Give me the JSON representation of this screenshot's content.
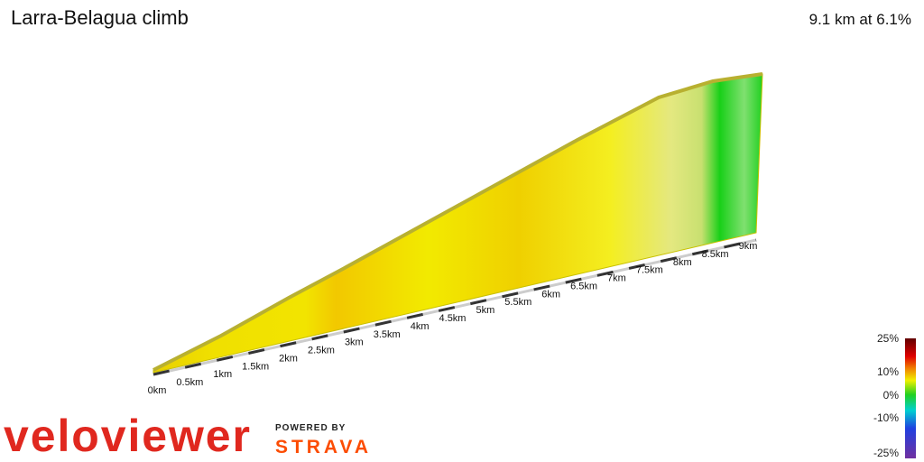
{
  "header": {
    "title": "Larra-Belagua climb",
    "summary": "9.1 km at 6.1%"
  },
  "distance_labels": [
    "0km",
    "0.5km",
    "1km",
    "1.5km",
    "2km",
    "2.5km",
    "3km",
    "3.5km",
    "4km",
    "4.5km",
    "5km",
    "5.5km",
    "6km",
    "6.5km",
    "7km",
    "7.5km",
    "8km",
    "8.5km",
    "9km"
  ],
  "gradient_legend": [
    "25%",
    "10%",
    "0%",
    "-10%",
    "-25%"
  ],
  "branding": {
    "logo": "veloviewer",
    "powered_by": "POWERED BY",
    "partner": "STRAVA"
  }
}
